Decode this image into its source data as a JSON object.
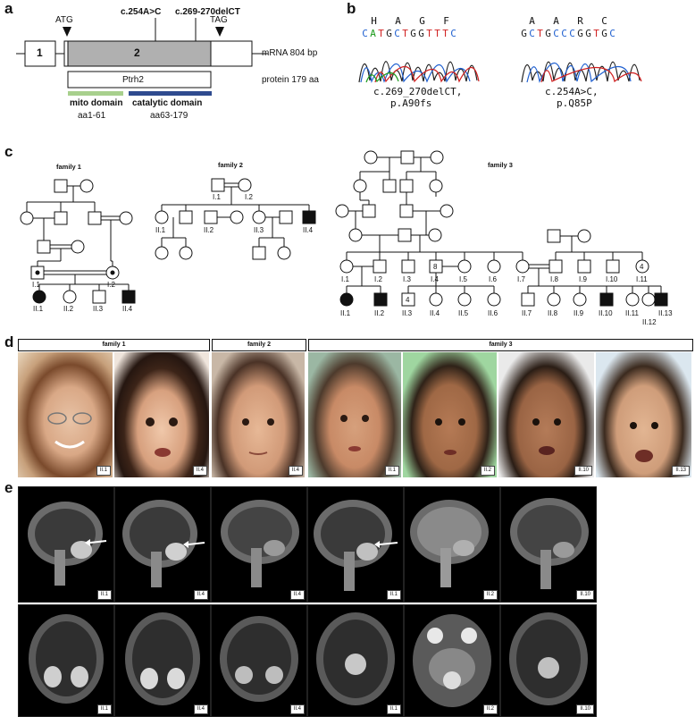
{
  "panels": {
    "a": "a",
    "b": "b",
    "c": "c",
    "d": "d",
    "e": "e"
  },
  "panel_a": {
    "atg": "ATG",
    "tag": "TAG",
    "mut1": "c.254A>C",
    "mut2": "c.269-270delCT",
    "exon1": "1",
    "exon2": "2",
    "mrna": "mRNA 804 bp",
    "protein_name": "Ptrh2",
    "protein": "protein 179 aa",
    "mito_domain": "mito domain",
    "mito_range": "aa1-61",
    "cat_domain": "catalytic domain",
    "cat_range": "aa63-179",
    "colors": {
      "exon2": "#b0b0b0",
      "mito": "#a8d08d",
      "catalytic": "#2f4b8f"
    }
  },
  "panel_b": {
    "left_aa": [
      "H",
      "A",
      "G",
      "F"
    ],
    "left_seq": [
      [
        "C",
        "#2060d0"
      ],
      [
        "A",
        "#1a9a1a"
      ],
      [
        "T",
        "#d02020"
      ],
      [
        "G",
        "#222222"
      ],
      [
        "C",
        "#2060d0"
      ],
      [
        "T",
        "#d02020"
      ],
      [
        "G",
        "#222222"
      ],
      [
        "G",
        "#222222"
      ],
      [
        "T",
        "#d02020"
      ],
      [
        "T",
        "#d02020"
      ],
      [
        "T",
        "#d02020"
      ],
      [
        "C",
        "#2060d0"
      ]
    ],
    "left_caption1": "c.269_270delCT,",
    "left_caption2": "p.A90fs",
    "right_aa": [
      "A",
      "A",
      "R",
      "C"
    ],
    "right_seq": [
      [
        "G",
        "#222222"
      ],
      [
        "C",
        "#2060d0"
      ],
      [
        "T",
        "#d02020"
      ],
      [
        "G",
        "#222222"
      ],
      [
        "C",
        "#2060d0"
      ],
      [
        "C",
        "#2060d0"
      ],
      [
        "C",
        "#2060d0"
      ],
      [
        "G",
        "#222222"
      ],
      [
        "G",
        "#222222"
      ],
      [
        "T",
        "#d02020"
      ],
      [
        "G",
        "#222222"
      ],
      [
        "C",
        "#2060d0"
      ]
    ],
    "right_caption1": "c.254A>C,",
    "right_caption2": "p.Q85P"
  },
  "panel_c": {
    "family1": "family 1",
    "family2": "family 2",
    "family3": "family 3",
    "f1": {
      "I1": "I.1",
      "I2": "I.2",
      "II1": "II.1",
      "II2": "II.2",
      "II3": "II.3",
      "II4": "II.4"
    },
    "f2": {
      "I1": "I.1",
      "I2": "I.2",
      "II1": "II.1",
      "II2": "II.2",
      "II3": "II.3",
      "II4": "II.4"
    },
    "f3": {
      "I1": "I.1",
      "I2": "I.2",
      "I3": "I.3",
      "I4": "I.4",
      "I5": "I.5",
      "I6": "I.6",
      "I7": "I.7",
      "I8": "I.8",
      "I9": "I.9",
      "I10": "I.10",
      "I11": "I.11",
      "II1": "II.1",
      "II2": "II.2",
      "II3": "II.3",
      "II4": "II.4",
      "II5": "II.5",
      "II6": "II.6",
      "II7": "II.7",
      "II8": "II.8",
      "II9": "II.9",
      "II10": "II.10",
      "II11": "II.11",
      "II12": "II.12",
      "II13": "II.13",
      "n8": "8",
      "n4a": "4",
      "n4b": "4"
    }
  },
  "panel_d": {
    "family1": "family 1",
    "family2": "family 2",
    "family3": "family 3",
    "photos": [
      "II.1",
      "II.4",
      "II.4",
      "II.1",
      "II.2",
      "II.10",
      "II.13"
    ]
  },
  "panel_e": {
    "sagittal": [
      "II.1",
      "II.4",
      "II.4",
      "II.1",
      "II.2",
      "II.10"
    ],
    "axial": [
      "II.1",
      "II.4",
      "II.4",
      "II.1",
      "II.2",
      "II.10"
    ]
  }
}
